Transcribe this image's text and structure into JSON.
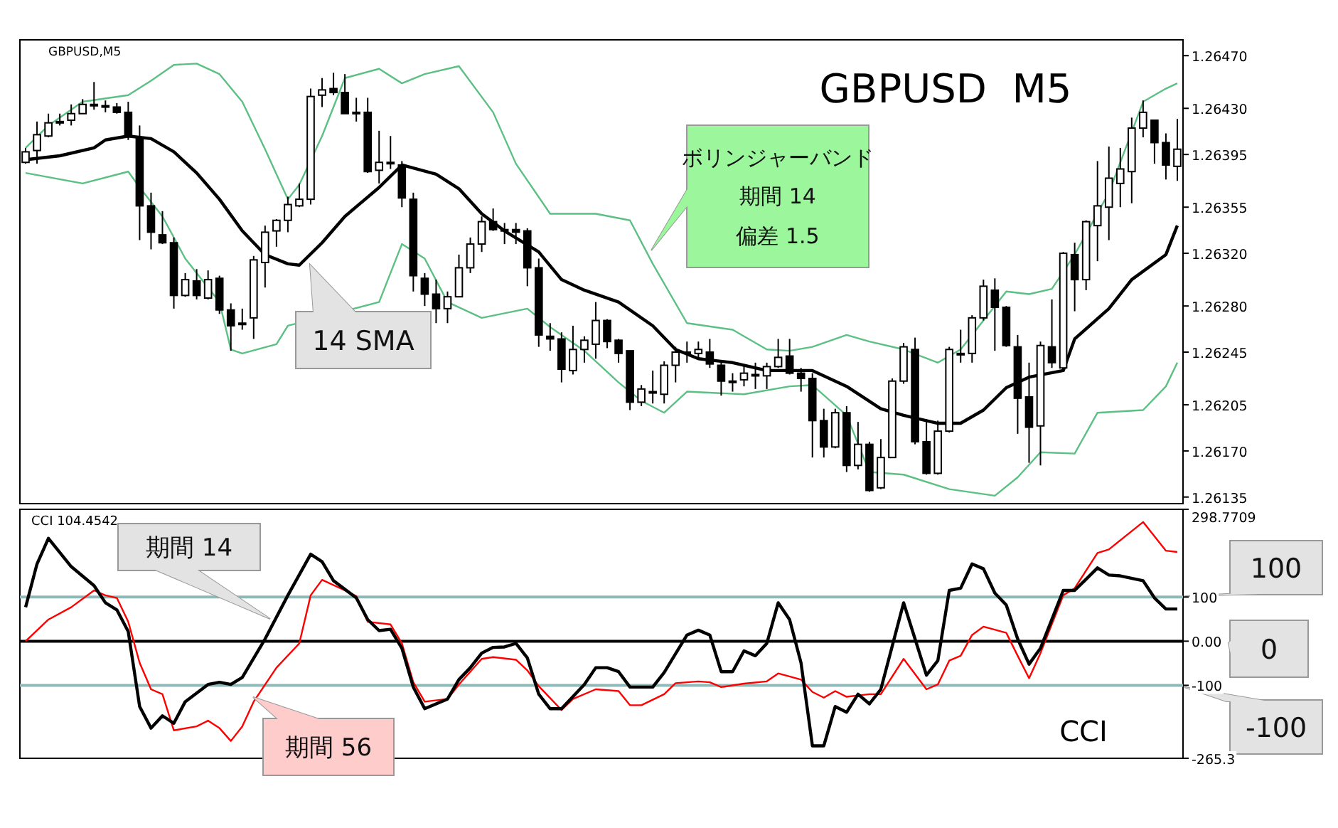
{
  "chart_data": [
    {
      "type": "candlestick",
      "title": "GBPUSD  M5",
      "subtitle": "GBPUSD,M5",
      "annotations": [
        "14 SMA",
        "ボリンジャーバンド",
        "期間 14",
        "偏差 1.5"
      ],
      "categories": [
        null,
        null,
        null,
        null,
        null,
        null,
        null,
        null,
        null,
        null,
        null,
        null,
        null,
        null,
        null,
        null,
        null,
        null,
        null,
        null,
        null,
        null,
        null,
        null,
        null,
        null,
        null,
        null,
        null,
        null,
        null,
        null,
        null,
        null,
        null,
        null,
        null,
        null,
        null,
        null,
        null,
        null,
        null,
        null,
        null,
        null,
        null,
        null,
        null,
        null,
        null,
        null,
        null,
        null,
        null,
        null,
        null,
        null,
        null,
        null,
        null,
        null,
        null,
        null,
        null,
        null,
        null,
        null,
        null,
        null,
        null,
        null,
        null,
        null,
        null,
        null,
        null,
        null,
        null,
        null,
        null,
        null,
        null,
        null,
        null,
        null,
        null,
        null,
        null,
        null,
        null,
        null,
        null,
        null,
        null,
        null,
        null,
        null,
        null,
        null,
        null,
        null
      ],
      "ohlc": [
        [
          1.26389,
          1.264,
          1.26388,
          1.26397
        ],
        [
          1.26398,
          1.2642,
          1.26388,
          1.2641
        ],
        [
          1.26409,
          1.26426,
          1.26408,
          1.26419
        ],
        [
          1.26419,
          1.26426,
          1.26417,
          1.2642
        ],
        [
          1.26421,
          1.26433,
          1.26417,
          1.26426
        ],
        [
          1.26426,
          1.26437,
          1.26426,
          1.26433
        ],
        [
          1.26432,
          1.2645,
          1.26429,
          1.26433
        ],
        [
          1.26432,
          1.26436,
          1.26427,
          1.26431
        ],
        [
          1.26431,
          1.26434,
          1.26426,
          1.26427
        ],
        [
          1.26427,
          1.26435,
          1.26406,
          1.26409
        ],
        [
          1.26408,
          1.26417,
          1.2633,
          1.26356
        ],
        [
          1.26356,
          1.26366,
          1.26323,
          1.26336
        ],
        [
          1.26334,
          1.26352,
          1.26327,
          1.26328
        ],
        [
          1.26328,
          1.26332,
          1.26278,
          1.26288
        ],
        [
          1.26288,
          1.26305,
          1.26287,
          1.263
        ],
        [
          1.26299,
          1.26308,
          1.26285,
          1.26288
        ],
        [
          1.26286,
          1.26307,
          1.26285,
          1.263
        ],
        [
          1.26301,
          1.26303,
          1.26274,
          1.26277
        ],
        [
          1.26277,
          1.26282,
          1.26246,
          1.26265
        ],
        [
          1.26267,
          1.26278,
          1.26262,
          1.26266
        ],
        [
          1.26271,
          1.26318,
          1.26255,
          1.26315
        ],
        [
          1.26313,
          1.26341,
          1.26294,
          1.26336
        ],
        [
          1.26337,
          1.26346,
          1.26325,
          1.26345
        ],
        [
          1.26345,
          1.26363,
          1.26336,
          1.26357
        ],
        [
          1.26356,
          1.26373,
          1.26355,
          1.26361
        ],
        [
          1.26361,
          1.26445,
          1.26357,
          1.26439
        ],
        [
          1.2644,
          1.26453,
          1.26431,
          1.26444
        ],
        [
          1.26445,
          1.26457,
          1.2644,
          1.26442
        ],
        [
          1.26442,
          1.26456,
          1.26426,
          1.26426
        ],
        [
          1.26427,
          1.26438,
          1.2642,
          1.26426
        ],
        [
          1.26427,
          1.26438,
          1.26381,
          1.26382
        ],
        [
          1.26383,
          1.26413,
          1.26373,
          1.26389
        ],
        [
          1.26389,
          1.26409,
          1.26384,
          1.26388
        ],
        [
          1.26387,
          1.2639,
          1.26355,
          1.26362
        ],
        [
          1.26361,
          1.26366,
          1.26291,
          1.26303
        ],
        [
          1.26301,
          1.26305,
          1.2628,
          1.26289
        ],
        [
          1.26289,
          1.263,
          1.26267,
          1.26278
        ],
        [
          1.26278,
          1.26291,
          1.26267,
          1.26287
        ],
        [
          1.26287,
          1.26319,
          1.26287,
          1.26309
        ],
        [
          1.26309,
          1.26332,
          1.26305,
          1.26327
        ],
        [
          1.26327,
          1.26348,
          1.26321,
          1.26344
        ],
        [
          1.26344,
          1.26354,
          1.26337,
          1.26338
        ],
        [
          1.26338,
          1.26343,
          1.26327,
          1.26337
        ],
        [
          1.26338,
          1.26343,
          1.26327,
          1.26336
        ],
        [
          1.26337,
          1.26339,
          1.26295,
          1.26309
        ],
        [
          1.26309,
          1.26316,
          1.26249,
          1.26258
        ],
        [
          1.26257,
          1.26267,
          1.26246,
          1.26255
        ],
        [
          1.26255,
          1.2626,
          1.26222,
          1.26232
        ],
        [
          1.26231,
          1.26265,
          1.26228,
          1.26247
        ],
        [
          1.26247,
          1.26257,
          1.26237,
          1.26254
        ],
        [
          1.26251,
          1.26283,
          1.2624,
          1.26269
        ],
        [
          1.26269,
          1.2627,
          1.26248,
          1.26253
        ],
        [
          1.26254,
          1.26255,
          1.26237,
          1.26244
        ],
        [
          1.26246,
          1.26246,
          1.26201,
          1.26207
        ],
        [
          1.26207,
          1.2622,
          1.26204,
          1.26217
        ],
        [
          1.26215,
          1.26231,
          1.26206,
          1.26214
        ],
        [
          1.26213,
          1.26238,
          1.26206,
          1.26235
        ],
        [
          1.26235,
          1.26249,
          1.26222,
          1.26245
        ],
        [
          1.26245,
          1.26253,
          1.26237,
          1.26244
        ],
        [
          1.26244,
          1.26253,
          1.2624,
          1.26247
        ],
        [
          1.26245,
          1.26255,
          1.26233,
          1.26236
        ],
        [
          1.26235,
          1.26237,
          1.26212,
          1.26223
        ],
        [
          1.26223,
          1.26229,
          1.26215,
          1.26222
        ],
        [
          1.26224,
          1.26235,
          1.26219,
          1.26229
        ],
        [
          1.26228,
          1.26237,
          1.26217,
          1.26227
        ],
        [
          1.26227,
          1.26237,
          1.26217,
          1.26234
        ],
        [
          1.26234,
          1.26255,
          1.26233,
          1.26241
        ],
        [
          1.26242,
          1.26255,
          1.26228,
          1.26229
        ],
        [
          1.26229,
          1.26233,
          1.26215,
          1.26225
        ],
        [
          1.26225,
          1.26229,
          1.26165,
          1.26193
        ],
        [
          1.26193,
          1.26202,
          1.26165,
          1.26173
        ],
        [
          1.26173,
          1.26202,
          1.26172,
          1.26199
        ],
        [
          1.26199,
          1.26204,
          1.26154,
          1.26159
        ],
        [
          1.26159,
          1.26192,
          1.26156,
          1.26175
        ],
        [
          1.26175,
          1.26177,
          1.26139,
          1.2614
        ],
        [
          1.26142,
          1.26179,
          1.26141,
          1.26165
        ],
        [
          1.26165,
          1.26225,
          1.26165,
          1.26223
        ],
        [
          1.26223,
          1.26252,
          1.26221,
          1.26249
        ],
        [
          1.26247,
          1.26256,
          1.26175,
          1.26177
        ],
        [
          1.26177,
          1.26194,
          1.26152,
          1.26153
        ],
        [
          1.26153,
          1.26193,
          1.26152,
          1.26185
        ],
        [
          1.26185,
          1.26249,
          1.26184,
          1.26247
        ],
        [
          1.26244,
          1.26262,
          1.26237,
          1.26243
        ],
        [
          1.26244,
          1.26273,
          1.26237,
          1.26271
        ],
        [
          1.26271,
          1.263,
          1.26269,
          1.26295
        ],
        [
          1.26292,
          1.26301,
          1.26246,
          1.26279
        ],
        [
          1.26279,
          1.2628,
          1.26249,
          1.2625
        ],
        [
          1.26249,
          1.26258,
          1.26183,
          1.2621
        ],
        [
          1.26211,
          1.26237,
          1.26161,
          1.26188
        ],
        [
          1.26189,
          1.26253,
          1.26159,
          1.2625
        ],
        [
          1.26249,
          1.26285,
          1.26233,
          1.26237
        ],
        [
          1.26233,
          1.26321,
          1.26231,
          1.2632
        ],
        [
          1.26319,
          1.26328,
          1.26276,
          1.263
        ],
        [
          1.263,
          1.26345,
          1.26292,
          1.26344
        ],
        [
          1.26341,
          1.2639,
          1.26314,
          1.26356
        ],
        [
          1.26355,
          1.26401,
          1.2633,
          1.26377
        ],
        [
          1.26373,
          1.264,
          1.26355,
          1.26384
        ],
        [
          1.26382,
          1.26423,
          1.26358,
          1.26415
        ],
        [
          1.26415,
          1.26436,
          1.26408,
          1.26427
        ],
        [
          1.26421,
          1.26421,
          1.26388,
          1.26404
        ],
        [
          1.26404,
          1.26411,
          1.26376,
          1.26387
        ],
        [
          1.26386,
          1.26422,
          1.26375,
          1.26399
        ]
      ],
      "series": [
        {
          "type": "line",
          "color": "#000000",
          "values": [
            1.26391,
            null,
            null,
            1.26394,
            null,
            null,
            1.264,
            1.26406,
            null,
            1.26409,
            null,
            1.26407,
            null,
            1.26397,
            null,
            1.26381,
            null,
            1.26361,
            null,
            1.26337,
            null,
            1.26319,
            null,
            1.26312,
            1.26311,
            null,
            1.26328,
            null,
            1.26348,
            null,
            null,
            1.2637,
            null,
            1.26387,
            null,
            null,
            1.2638,
            null,
            1.26369,
            null,
            1.2635,
            null,
            1.26337,
            null,
            null,
            1.26321,
            null,
            1.263,
            null,
            1.26292,
            null,
            null,
            1.26283,
            null,
            null,
            1.26265,
            null,
            1.26247,
            null,
            1.2624,
            null,
            null,
            1.26237,
            null,
            null,
            1.26231,
            null,
            1.26231,
            null,
            1.26231,
            null,
            null,
            1.26219,
            null,
            null,
            1.26202,
            null,
            1.26197,
            null,
            null,
            1.26191,
            null,
            1.26191,
            null,
            1.26201,
            null,
            1.26218,
            null,
            1.26226,
            null,
            null,
            1.26231,
            1.26255,
            null,
            null,
            1.26278,
            null,
            1.263,
            null,
            null,
            1.26319,
            1.26341
          ]
        },
        {
          "type": "line",
          "color": "#5cbf83",
          "values": [
            1.264,
            null,
            1.26417,
            null,
            null,
            1.26435,
            null,
            null,
            null,
            1.2644,
            null,
            1.26451,
            null,
            1.26463,
            null,
            1.26464,
            null,
            1.26456,
            null,
            1.26435,
            null,
            1.26399,
            null,
            1.26361,
            1.26372,
            null,
            1.26409,
            null,
            1.26453,
            null,
            null,
            1.2646,
            null,
            1.26449,
            null,
            1.26456,
            null,
            null,
            1.26462,
            null,
            null,
            1.26427,
            null,
            1.26388,
            null,
            null,
            1.2635,
            null,
            null,
            null,
            1.2635,
            null,
            null,
            1.26345,
            null,
            1.26312,
            null,
            null,
            1.26267,
            null,
            null,
            null,
            1.26262,
            null,
            null,
            1.26247,
            null,
            1.26246,
            null,
            1.26249,
            null,
            null,
            1.26258,
            null,
            1.26253,
            null,
            null,
            1.26247,
            null,
            null,
            1.26237,
            null,
            1.26247,
            null,
            1.26269,
            null,
            1.26291,
            null,
            1.26289,
            null,
            1.26293,
            null,
            1.26319,
            null,
            null,
            1.26366,
            null,
            null,
            1.26435,
            null,
            1.26445,
            1.26449
          ]
        },
        {
          "type": "line",
          "color": "#5cbf83",
          "values": [
            1.26381,
            null,
            null,
            null,
            null,
            1.26373,
            null,
            null,
            null,
            1.26382,
            1.2637,
            null,
            1.26348,
            null,
            1.26316,
            null,
            null,
            1.26283,
            1.26247,
            1.26244,
            null,
            null,
            1.26251,
            1.26265,
            null,
            null,
            null,
            null,
            null,
            null,
            null,
            1.26283,
            null,
            1.26327,
            null,
            1.26316,
            null,
            1.26283,
            null,
            null,
            1.26271,
            null,
            null,
            null,
            1.26278,
            null,
            1.26264,
            null,
            null,
            1.26246,
            null,
            null,
            1.26222,
            null,
            1.26208,
            null,
            1.26199,
            null,
            1.26215,
            null,
            null,
            null,
            null,
            1.26213,
            null,
            null,
            null,
            1.26219,
            null,
            1.2622,
            null,
            null,
            1.26197,
            null,
            1.26154,
            null,
            null,
            1.26152,
            null,
            null,
            null,
            1.26141,
            null,
            null,
            null,
            1.26136,
            null,
            1.2615,
            null,
            1.26169,
            null,
            null,
            1.26168,
            null,
            1.26199,
            null,
            null,
            null,
            1.26201,
            null,
            1.26219,
            1.26237
          ]
        }
      ],
      "ylim": [
        1.2613,
        1.26482
      ],
      "yticks": [
        {
          "value": 1.2647,
          "label": "1.26470"
        },
        {
          "value": 1.2643,
          "label": "1.26430"
        },
        1.26395,
        1.26355,
        {
          "value": 1.2632,
          "label": "1.26320"
        },
        {
          "value": 1.2628,
          "label": "1.26280"
        },
        1.26245,
        1.26205,
        {
          "value": 1.2617,
          "label": "1.26170"
        },
        1.26135
      ],
      "tick_labels": "y"
    },
    {
      "type": "line",
      "annotations": [
        "CCI 104.4542",
        "CCI",
        "期間 14",
        "期間 56",
        "100",
        "0",
        "-100"
      ],
      "categories": [
        null,
        null,
        null,
        null,
        null,
        null,
        null,
        null,
        null,
        null,
        null,
        null,
        null,
        null,
        null,
        null,
        null,
        null,
        null,
        null,
        null,
        null,
        null,
        null,
        null,
        null,
        null,
        null,
        null,
        null,
        null,
        null,
        null,
        null,
        null,
        null,
        null,
        null,
        null,
        null,
        null,
        null,
        null,
        null,
        null,
        null,
        null,
        null,
        null,
        null,
        null,
        null,
        null,
        null,
        null,
        null,
        null,
        null,
        null,
        null,
        null,
        null,
        null,
        null,
        null,
        null,
        null,
        null,
        null,
        null,
        null,
        null,
        null,
        null,
        null,
        null,
        null,
        null,
        null,
        null,
        null,
        null,
        null,
        null,
        null,
        null,
        null,
        null,
        null,
        null,
        null,
        null,
        null,
        null,
        null,
        null,
        null,
        null,
        null,
        null,
        null,
        null
      ],
      "series": [
        {
          "color": "#ff0000",
          "values": [
            0,
            null,
            49,
            null,
            77,
            null,
            115,
            104,
            98,
            44,
            -49,
            -109,
            -120,
            -202,
            null,
            -193,
            -180,
            -197,
            -226,
            -193,
            -137,
            null,
            -60,
            null,
            -5,
            104,
            139,
            null,
            115,
            102,
            44,
            null,
            38,
            -5,
            -93,
            -137,
            null,
            -131,
            -98,
            null,
            -40,
            -36,
            null,
            -42,
            -66,
            -102,
            null,
            -156,
            -131,
            null,
            -109,
            null,
            -113,
            -145,
            -145,
            null,
            -120,
            -95,
            null,
            -91,
            -93,
            -104,
            null,
            -96,
            null,
            -91,
            -73,
            null,
            -87,
            -115,
            -128,
            -113,
            -126,
            null,
            -120,
            -120,
            null,
            -40,
            null,
            -109,
            -98,
            -44,
            -33,
            14,
            33,
            null,
            19,
            -33,
            -84,
            -27,
            null,
            104,
            120,
            null,
            200,
            208,
            null,
            null,
            270,
            null,
            205,
            202
          ]
        },
        {
          "color": "#000000",
          "values": [
            77,
            175,
            233,
            null,
            169,
            null,
            126,
            87,
            71,
            22,
            -148,
            -197,
            -169,
            -186,
            -137,
            null,
            -98,
            -93,
            -98,
            -82,
            null,
            5,
            null,
            104,
            null,
            197,
            180,
            137,
            null,
            98,
            49,
            24,
            27,
            -16,
            -104,
            -153,
            null,
            -131,
            -87,
            -60,
            -27,
            -14,
            -13,
            -5,
            -38,
            -120,
            -153,
            -153,
            null,
            -98,
            -60,
            -60,
            -69,
            -104,
            null,
            -104,
            -71,
            null,
            14,
            25,
            14,
            -69,
            -69,
            -22,
            -33,
            -5,
            87,
            49,
            -49,
            -237,
            -237,
            -148,
            -161,
            -120,
            -142,
            -109,
            null,
            87,
            5,
            -77,
            -44,
            115,
            120,
            175,
            164,
            109,
            82,
            5,
            -52,
            -16,
            null,
            115,
            115,
            null,
            166,
            150,
            148,
            null,
            137,
            98,
            73,
            73
          ]
        }
      ],
      "ref_lines": [
        {
          "axis": "y",
          "value": 100,
          "color": "#8fb8b8"
        },
        {
          "axis": "y",
          "value": 0,
          "color": "#000000"
        },
        {
          "axis": "y",
          "value": -100,
          "color": "#8fb8b8"
        }
      ],
      "ylim": [
        -265.3,
        298.7709
      ],
      "yticks": [
        298.7709,
        100,
        {
          "value": 0,
          "label": "0.00"
        },
        -100,
        -265.3
      ],
      "tick_labels": "y"
    }
  ]
}
